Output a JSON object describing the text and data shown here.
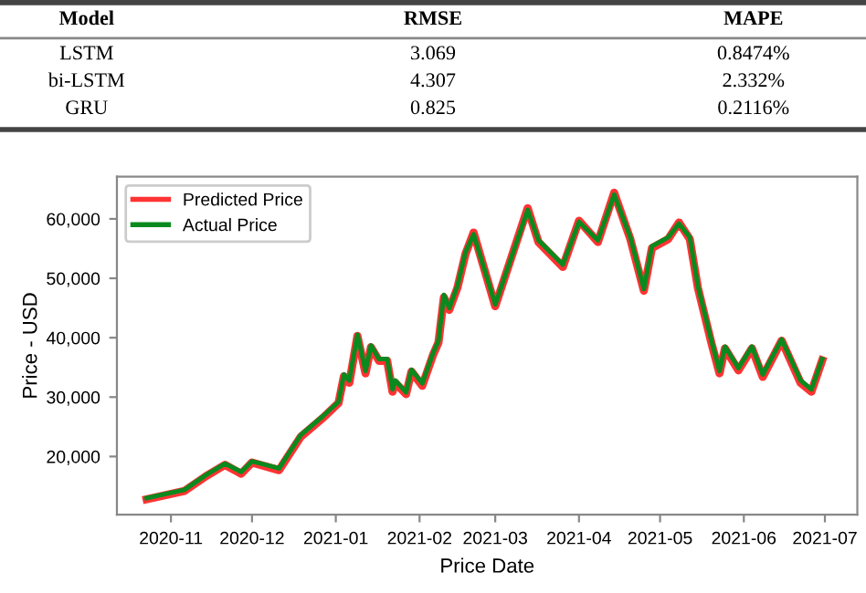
{
  "chart_data": [
    {
      "type": "other",
      "annotations": [
        "Model",
        "RMSE",
        "MAPE",
        "LSTM",
        "3.069",
        "0.8474%",
        "bi-LSTM",
        "4.307",
        "2.332%",
        "GRU",
        "0.825",
        "0.2116%"
      ]
    },
    {
      "type": "line",
      "xlabel": "Price Date",
      "ylabel": "Price - USD",
      "legend": "top left",
      "grid": false,
      "xlim": [
        "2020-10-12",
        "2021-07-13"
      ],
      "ylim": [
        10200,
        67100
      ],
      "xticks": [
        {
          "value": "2020-11-01",
          "label": "2020-11"
        },
        {
          "value": "2020-12-01",
          "label": "2020-12"
        },
        {
          "value": "2021-01-01",
          "label": "2021-01"
        },
        {
          "value": "2021-02-01",
          "label": "2021-02"
        },
        {
          "value": "2021-03-01",
          "label": "2021-03"
        },
        {
          "value": "2021-04-01",
          "label": "2021-04"
        },
        {
          "value": "2021-05-01",
          "label": "2021-05"
        },
        {
          "value": "2021-06-01",
          "label": "2021-06"
        },
        {
          "value": "2021-07-01",
          "label": "2021-07"
        }
      ],
      "yticks": [
        {
          "value": 20000,
          "label": "20,000"
        },
        {
          "value": 30000,
          "label": "30,000"
        },
        {
          "value": 40000,
          "label": "40,000"
        },
        {
          "value": 50000,
          "label": "50,000"
        },
        {
          "value": 60000,
          "label": "60,000"
        }
      ],
      "x": [
        "2020-10-23",
        "2020-11-06",
        "2020-11-14",
        "2020-11-21",
        "2020-11-27",
        "2020-12-01",
        "2020-12-11",
        "2020-12-19",
        "2020-12-27",
        "2021-01-02",
        "2021-01-04",
        "2021-01-06",
        "2021-01-09",
        "2021-01-12",
        "2021-01-14",
        "2021-01-17",
        "2021-01-20",
        "2021-01-22",
        "2021-01-23",
        "2021-01-27",
        "2021-01-29",
        "2021-02-02",
        "2021-02-06",
        "2021-02-08",
        "2021-02-10",
        "2021-02-12",
        "2021-02-15",
        "2021-02-18",
        "2021-02-21",
        "2021-03-01",
        "2021-03-13",
        "2021-03-17",
        "2021-03-26",
        "2021-04-01",
        "2021-04-08",
        "2021-04-14",
        "2021-04-20",
        "2021-04-25",
        "2021-04-28",
        "2021-05-04",
        "2021-05-08",
        "2021-05-12",
        "2021-05-15",
        "2021-05-20",
        "2021-05-23",
        "2021-05-25",
        "2021-05-30",
        "2021-06-04",
        "2021-06-08",
        "2021-06-15",
        "2021-06-22",
        "2021-06-26",
        "2021-06-30"
      ],
      "series": [
        {
          "name": "Predicted Price",
          "color": "#ff3333",
          "values": [
            12800,
            14200,
            16700,
            18600,
            17100,
            19000,
            17700,
            23300,
            26400,
            29000,
            33500,
            32400,
            40300,
            34000,
            38400,
            36100,
            36100,
            30900,
            32400,
            30500,
            34300,
            31900,
            37100,
            39200,
            46800,
            44700,
            48400,
            54100,
            57700,
            45300,
            61800,
            56100,
            51900,
            59700,
            56100,
            64400,
            56600,
            47900,
            55100,
            56600,
            59400,
            56600,
            48400,
            39100,
            34000,
            38200,
            34500,
            38200,
            33400,
            39500,
            32400,
            30900,
            36200
          ]
        },
        {
          "name": "Actual Price",
          "color": "#0a8a1e",
          "values": [
            13000,
            14400,
            16900,
            18800,
            17400,
            19200,
            18000,
            23600,
            26700,
            29200,
            33800,
            32800,
            40500,
            34400,
            38700,
            36400,
            36400,
            31300,
            32800,
            30800,
            34600,
            32300,
            37400,
            39500,
            47200,
            45000,
            48700,
            54400,
            57400,
            45600,
            61500,
            56400,
            52300,
            59500,
            56400,
            64100,
            56900,
            48200,
            55400,
            56900,
            59200,
            56900,
            48700,
            39500,
            34400,
            38500,
            34900,
            38500,
            33800,
            39700,
            32800,
            31300,
            36400
          ]
        }
      ]
    }
  ]
}
